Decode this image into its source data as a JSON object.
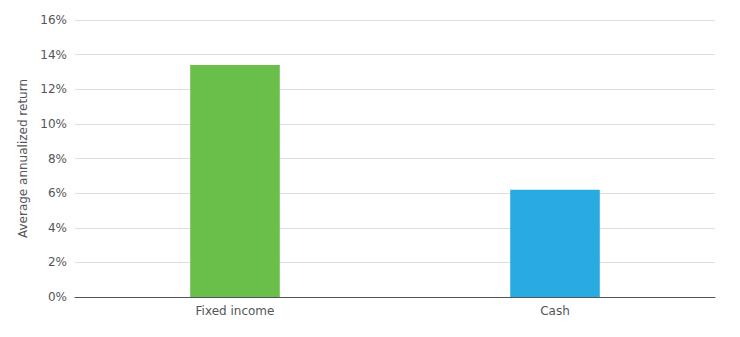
{
  "chart_data": {
    "type": "bar",
    "categories": [
      "Fixed income",
      "Cash"
    ],
    "values": [
      0.134,
      0.062
    ],
    "colors": [
      "#6abf4b",
      "#29abe2"
    ],
    "ylabel": "Average annualized return",
    "ylim": [
      0,
      0.16
    ],
    "yticks": [
      {
        "value": 0,
        "label": "0%"
      },
      {
        "value": 0.02,
        "label": "2%"
      },
      {
        "value": 0.04,
        "label": "4%"
      },
      {
        "value": 0.06,
        "label": "6%"
      },
      {
        "value": 0.08,
        "label": "8%"
      },
      {
        "value": 0.1,
        "label": "10%"
      },
      {
        "value": 0.12,
        "label": "12%"
      },
      {
        "value": 0.14,
        "label": "14%"
      },
      {
        "value": 0.16,
        "label": "16%"
      }
    ],
    "grid": true
  }
}
